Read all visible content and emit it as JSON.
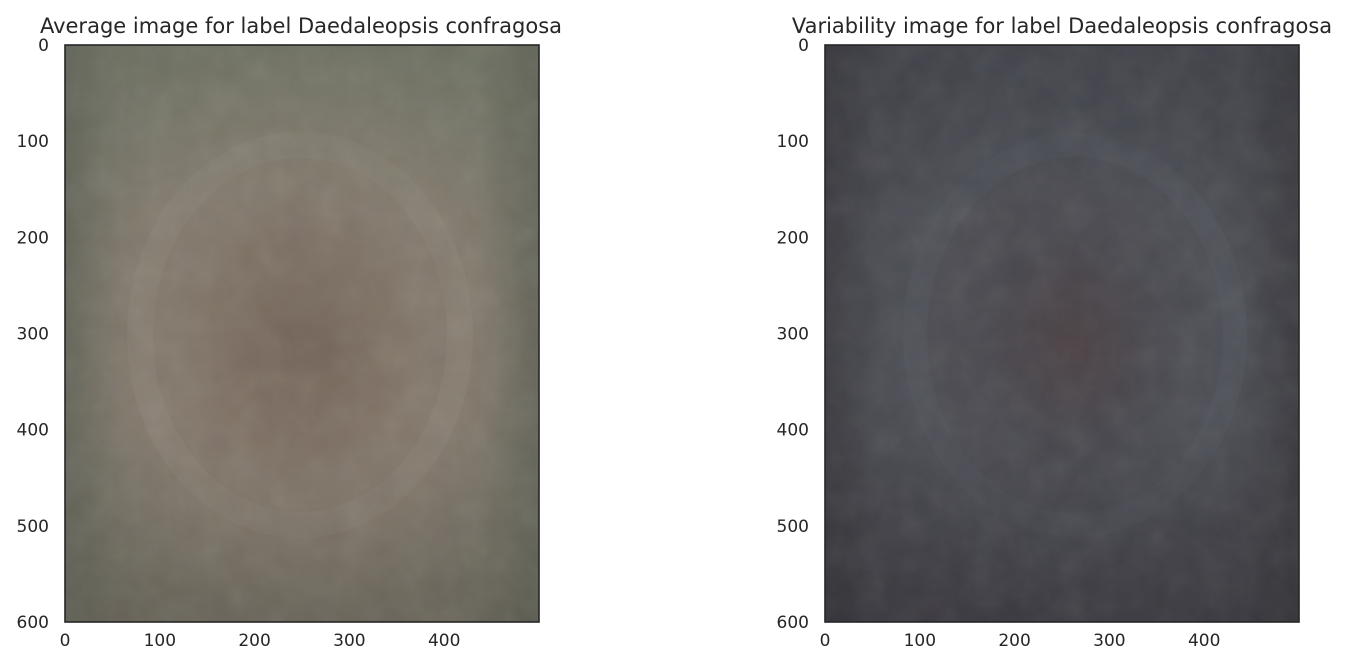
{
  "chart_data": [
    {
      "type": "heatmap",
      "title": "Average image for label Daedaleopsis confragosa",
      "xlabel": "",
      "ylabel": "",
      "xlim": [
        0,
        500
      ],
      "ylim": [
        600,
        0
      ],
      "x_ticks": [
        "0",
        "100",
        "200",
        "300",
        "400"
      ],
      "y_ticks": [
        "0",
        "100",
        "200",
        "300",
        "400",
        "500",
        "600"
      ],
      "grid": false,
      "image": {
        "kind": "mean-rgb-image",
        "description_colors": {
          "base": "#6f6e62",
          "center": "#7d6a5c",
          "ring": "#8e857a",
          "edge": "#5e5f54"
        }
      }
    },
    {
      "type": "heatmap",
      "title": "Variability image for label Daedaleopsis confragosa",
      "xlabel": "",
      "ylabel": "",
      "xlim": [
        0,
        500
      ],
      "ylim": [
        600,
        0
      ],
      "x_ticks": [
        "0",
        "100",
        "200",
        "300",
        "400"
      ],
      "y_ticks": [
        "0",
        "100",
        "200",
        "300",
        "400",
        "500",
        "600"
      ],
      "grid": false,
      "image": {
        "kind": "std-rgb-image",
        "description_colors": {
          "base": "#44434a",
          "center": "#4d4347",
          "ring": "#50535a",
          "edge": "#3c3c40"
        }
      }
    }
  ]
}
